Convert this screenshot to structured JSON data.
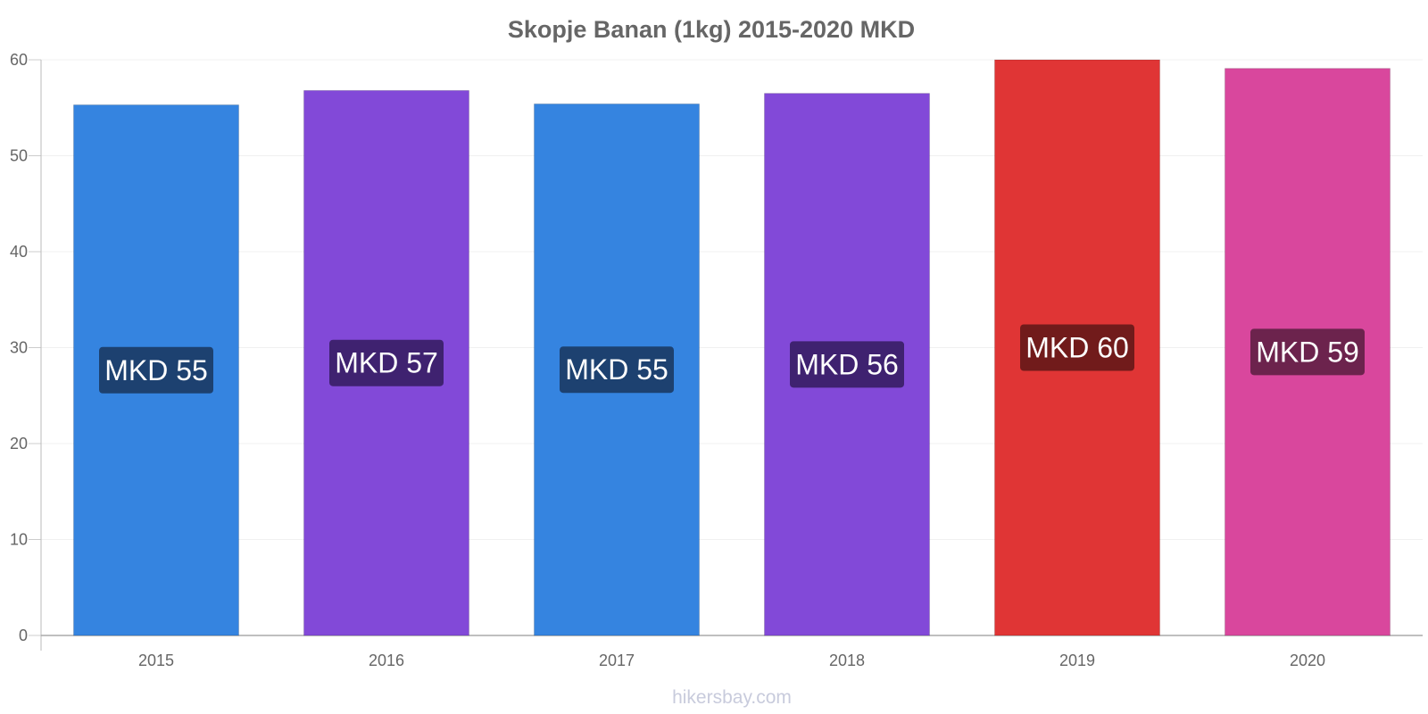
{
  "chart_data": {
    "type": "bar",
    "title": "Skopje Banan (1kg) 2015-2020 MKD",
    "xlabel": "",
    "ylabel": "",
    "categories": [
      "2015",
      "2016",
      "2017",
      "2018",
      "2019",
      "2020"
    ],
    "values": [
      55.3,
      56.8,
      55.4,
      56.5,
      60.0,
      59.1
    ],
    "data_labels": [
      "MKD 55",
      "MKD 57",
      "MKD 55",
      "MKD 56",
      "MKD 60",
      "MKD 59"
    ],
    "bar_colors": [
      "#3584e0",
      "#8249d8",
      "#3584e0",
      "#8249d8",
      "#e03535",
      "#d9479d"
    ],
    "label_bg_colors": [
      "#1d4170",
      "#3f2270",
      "#1d4170",
      "#3f2270",
      "#711b1b",
      "#6c234d"
    ],
    "ylim": [
      0,
      60
    ],
    "yticks": [
      0,
      10,
      20,
      30,
      40,
      50,
      60
    ],
    "grid": true,
    "legend": "none"
  },
  "watermark": "hikersbay.com"
}
